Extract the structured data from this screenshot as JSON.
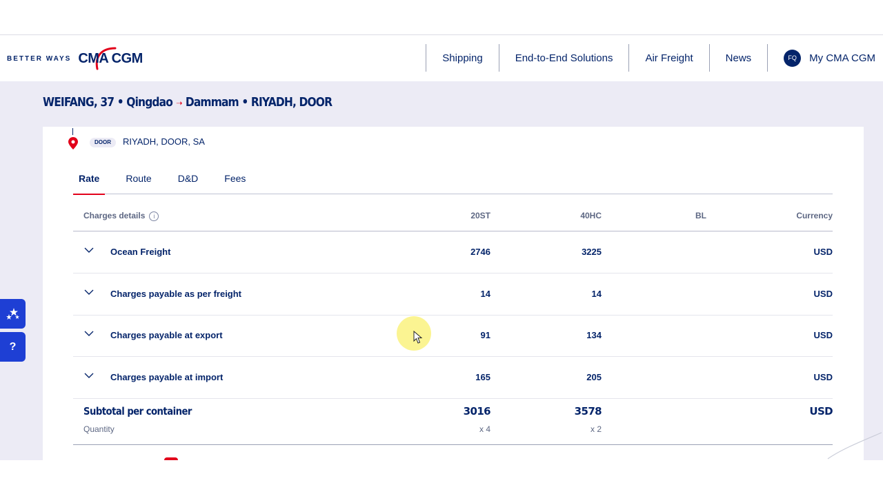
{
  "header": {
    "tagline": "BETTER WAYS",
    "brand": "CMA CGM",
    "nav": [
      {
        "label": "Shipping"
      },
      {
        "label": "End-to-End Solutions"
      },
      {
        "label": "Air Freight"
      },
      {
        "label": "News"
      }
    ],
    "account": {
      "initials": "FQ",
      "label": "My CMA CGM"
    }
  },
  "route": {
    "origin": "WEIFANG, 37 • Qingdao",
    "arrow": "➝",
    "destination": "Dammam • RIYADH, DOOR"
  },
  "door": {
    "badge": "DOOR",
    "place": "RIYADH, DOOR, SA"
  },
  "tabs": [
    {
      "label": "Rate",
      "active": true
    },
    {
      "label": "Route"
    },
    {
      "label": "D&D"
    },
    {
      "label": "Fees"
    }
  ],
  "table": {
    "headers": {
      "charges": "Charges details",
      "c20": "20ST",
      "c40": "40HC",
      "bl": "BL",
      "currency": "Currency"
    },
    "rows": [
      {
        "label": "Ocean Freight",
        "c20": "2746",
        "c40": "3225",
        "bl": "",
        "currency": "USD"
      },
      {
        "label": "Charges payable as per freight",
        "c20": "14",
        "c40": "14",
        "bl": "",
        "currency": "USD"
      },
      {
        "label": "Charges payable at export",
        "c20": "91",
        "c40": "134",
        "bl": "",
        "currency": "USD"
      },
      {
        "label": "Charges payable at import",
        "c20": "165",
        "c40": "205",
        "bl": "",
        "currency": "USD"
      }
    ],
    "subtotal": {
      "label": "Subtotal per container",
      "qty_label": "Quantity",
      "c20": "3016",
      "c20_qty": "x 4",
      "c40": "3578",
      "c40_qty": "x 2",
      "currency": "USD"
    }
  },
  "side_widgets": {
    "favorites_icon": "stars-icon",
    "help": "?"
  },
  "colors": {
    "navy": "#04246a",
    "red": "#e2001a",
    "band": "#ecebf5",
    "widget": "#1e3fd4"
  }
}
